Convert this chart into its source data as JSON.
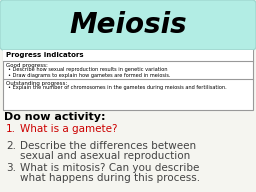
{
  "title": "Meiosis",
  "title_bg": "#b2ede4",
  "title_border": "#a0d8d0",
  "progress_box_title": "Progress indicators",
  "good_progress_label": "Good progress:",
  "good_bullets": [
    "Describe how sexual reproduction results in genetic variation",
    "Draw diagrams to explain how gametes are formed in meiosis."
  ],
  "outstanding_label": "Outstanding progress:",
  "outstanding_bullets": [
    "Explain the number of chromosomes in the gametes during meiosis and fertilisation."
  ],
  "do_now_title": "Do now activity:",
  "items": [
    {
      "number": "1.",
      "text": "What is a gamete?",
      "color": "#cc0000"
    },
    {
      "number": "2.",
      "text": "Describe the differences between\nsexual and asexual reproduction",
      "color": "#444444"
    },
    {
      "number": "3.",
      "text": "What is mitosis? Can you describe\nwhat happens during this process.",
      "color": "#444444"
    }
  ],
  "bg_color": "#f5f5f0"
}
